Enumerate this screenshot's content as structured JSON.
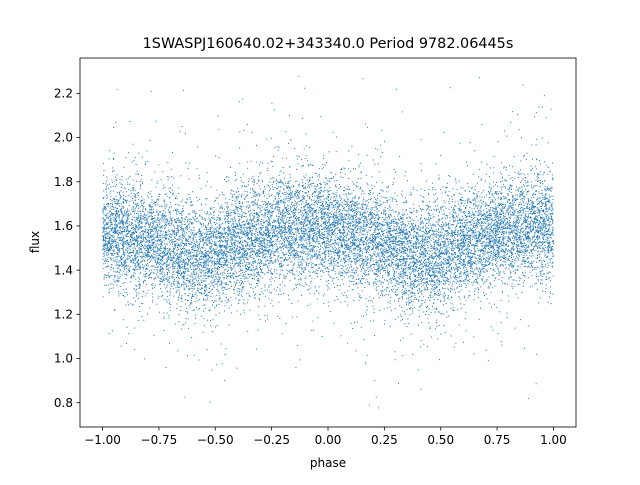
{
  "chart_data": {
    "type": "scatter",
    "title": "1SWASPJ160640.02+343340.0 Period 9782.06445s",
    "xlabel": "phase",
    "ylabel": "flux",
    "xlim": [
      -1.1,
      1.1
    ],
    "ylim": [
      0.69,
      2.36
    ],
    "xticks": [
      -1.0,
      -0.75,
      -0.5,
      -0.25,
      0.0,
      0.25,
      0.5,
      0.75,
      1.0
    ],
    "xtick_labels": [
      "−1.00",
      "−0.75",
      "−0.50",
      "−0.25",
      "0.00",
      "0.25",
      "0.50",
      "0.75",
      "1.00"
    ],
    "yticks": [
      0.8,
      1.0,
      1.2,
      1.4,
      1.6,
      1.8,
      2.0,
      2.2
    ],
    "ytick_labels": [
      "0.8",
      "1.0",
      "1.2",
      "1.4",
      "1.6",
      "1.8",
      "2.0",
      "2.2"
    ],
    "grid": false,
    "legend": "none",
    "marker_color": "#1f77b4",
    "series": [
      {
        "x_range": [
          -1.0,
          1.0
        ],
        "point_count_approx": 14000,
        "trend": [
          {
            "x": -1.0,
            "y": 1.58
          },
          {
            "x": -0.9,
            "y": 1.56
          },
          {
            "x": -0.75,
            "y": 1.52
          },
          {
            "x": -0.6,
            "y": 1.45
          },
          {
            "x": -0.5,
            "y": 1.47
          },
          {
            "x": -0.4,
            "y": 1.52
          },
          {
            "x": -0.25,
            "y": 1.57
          },
          {
            "x": -0.1,
            "y": 1.6
          },
          {
            "x": 0.0,
            "y": 1.58
          },
          {
            "x": 0.1,
            "y": 1.56
          },
          {
            "x": 0.25,
            "y": 1.52
          },
          {
            "x": 0.4,
            "y": 1.45
          },
          {
            "x": 0.5,
            "y": 1.47
          },
          {
            "x": 0.6,
            "y": 1.52
          },
          {
            "x": 0.75,
            "y": 1.57
          },
          {
            "x": 0.9,
            "y": 1.6
          },
          {
            "x": 1.0,
            "y": 1.58
          }
        ],
        "scatter_sd": 0.12,
        "y_range_observed": [
          0.75,
          2.3
        ]
      }
    ]
  }
}
